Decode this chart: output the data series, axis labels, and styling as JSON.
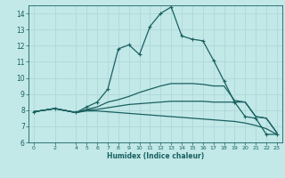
{
  "xlabel": "Humidex (Indice chaleur)",
  "bg_color": "#c2e8e8",
  "grid_color": "#b0d8d8",
  "line_color": "#1a6060",
  "xlim": [
    -0.5,
    23.5
  ],
  "ylim": [
    6,
    14.5
  ],
  "yticks": [
    6,
    7,
    8,
    9,
    10,
    11,
    12,
    13,
    14
  ],
  "xticks": [
    0,
    2,
    4,
    5,
    6,
    7,
    8,
    9,
    10,
    11,
    12,
    13,
    14,
    15,
    16,
    17,
    18,
    19,
    20,
    21,
    22,
    23
  ],
  "line1_x": [
    0,
    2,
    4,
    5,
    6,
    7,
    8,
    9,
    10,
    11,
    12,
    13,
    14,
    15,
    16,
    17,
    18,
    19,
    20,
    21,
    22,
    23
  ],
  "line1_y": [
    7.9,
    8.1,
    7.85,
    8.2,
    8.5,
    9.3,
    11.8,
    12.05,
    11.45,
    13.2,
    14.0,
    14.4,
    12.6,
    12.4,
    12.3,
    11.1,
    9.8,
    8.5,
    7.6,
    7.5,
    6.5,
    6.5
  ],
  "line2_x": [
    0,
    2,
    4,
    5,
    6,
    7,
    8,
    9,
    10,
    11,
    12,
    13,
    14,
    15,
    16,
    17,
    18,
    19,
    20,
    21,
    22,
    23
  ],
  "line2_y": [
    7.9,
    8.1,
    7.85,
    8.05,
    8.2,
    8.5,
    8.65,
    8.85,
    9.1,
    9.3,
    9.5,
    9.65,
    9.65,
    9.65,
    9.6,
    9.5,
    9.5,
    8.6,
    8.5,
    7.6,
    7.5,
    6.6
  ],
  "line3_x": [
    0,
    2,
    4,
    5,
    6,
    7,
    8,
    9,
    10,
    11,
    12,
    13,
    14,
    15,
    16,
    17,
    18,
    19,
    20,
    21,
    22,
    23
  ],
  "line3_y": [
    7.9,
    8.1,
    7.85,
    8.0,
    8.05,
    8.15,
    8.25,
    8.35,
    8.4,
    8.45,
    8.5,
    8.55,
    8.55,
    8.55,
    8.55,
    8.5,
    8.5,
    8.5,
    8.5,
    7.6,
    7.5,
    6.6
  ],
  "line4_x": [
    0,
    2,
    4,
    5,
    6,
    7,
    8,
    9,
    10,
    11,
    12,
    13,
    14,
    15,
    16,
    17,
    18,
    19,
    20,
    21,
    22,
    23
  ],
  "line4_y": [
    7.9,
    8.1,
    7.85,
    7.95,
    7.95,
    7.9,
    7.85,
    7.8,
    7.75,
    7.7,
    7.65,
    7.6,
    7.55,
    7.5,
    7.45,
    7.4,
    7.35,
    7.3,
    7.2,
    7.05,
    6.85,
    6.5
  ]
}
